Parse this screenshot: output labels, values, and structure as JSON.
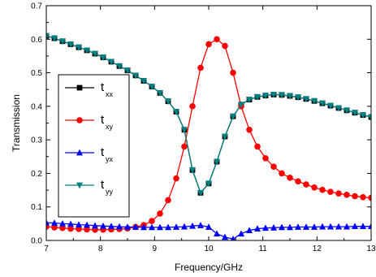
{
  "chart_data": {
    "type": "line",
    "xlabel": "Frequency/GHz",
    "ylabel": "Transmission",
    "xlim": [
      7,
      13
    ],
    "ylim": [
      0.0,
      0.7
    ],
    "xticks": [
      7,
      8,
      9,
      10,
      11,
      12,
      13
    ],
    "yticks": [
      0.0,
      0.1,
      0.2,
      0.3,
      0.4,
      0.5,
      0.6,
      0.7
    ],
    "grid": false,
    "legend_position": "left-middle",
    "x": [
      7.0,
      7.15,
      7.3,
      7.45,
      7.6,
      7.75,
      7.9,
      8.05,
      8.2,
      8.35,
      8.5,
      8.65,
      8.8,
      8.95,
      9.1,
      9.25,
      9.4,
      9.55,
      9.7,
      9.85,
      10.0,
      10.15,
      10.3,
      10.45,
      10.6,
      10.75,
      10.9,
      11.05,
      11.2,
      11.35,
      11.5,
      11.65,
      11.8,
      11.95,
      12.1,
      12.25,
      12.4,
      12.55,
      12.7,
      12.85,
      13.0
    ],
    "series": [
      {
        "name": "t",
        "sub": "xx",
        "color": "#000000",
        "marker": "square",
        "values": [
          0.61,
          0.603,
          0.594,
          0.585,
          0.576,
          0.567,
          0.557,
          0.546,
          0.533,
          0.52,
          0.507,
          0.492,
          0.476,
          0.459,
          0.44,
          0.415,
          0.384,
          0.33,
          0.21,
          0.142,
          0.17,
          0.235,
          0.31,
          0.37,
          0.405,
          0.42,
          0.428,
          0.432,
          0.435,
          0.434,
          0.431,
          0.427,
          0.422,
          0.416,
          0.409,
          0.402,
          0.395,
          0.388,
          0.381,
          0.374,
          0.368
        ]
      },
      {
        "name": "t",
        "sub": "xy",
        "color": "#ff0000",
        "marker": "circle",
        "values": [
          0.041,
          0.039,
          0.037,
          0.035,
          0.034,
          0.033,
          0.032,
          0.032,
          0.033,
          0.034,
          0.036,
          0.04,
          0.046,
          0.058,
          0.08,
          0.12,
          0.185,
          0.28,
          0.4,
          0.515,
          0.585,
          0.6,
          0.58,
          0.5,
          0.4,
          0.33,
          0.28,
          0.245,
          0.22,
          0.2,
          0.187,
          0.176,
          0.167,
          0.158,
          0.151,
          0.145,
          0.14,
          0.136,
          0.132,
          0.129,
          0.127
        ]
      },
      {
        "name": "t",
        "sub": "yx",
        "color": "#0000ff",
        "marker": "triangle-up",
        "values": [
          0.053,
          0.052,
          0.05,
          0.049,
          0.047,
          0.046,
          0.044,
          0.043,
          0.042,
          0.041,
          0.04,
          0.04,
          0.039,
          0.039,
          0.039,
          0.039,
          0.04,
          0.041,
          0.043,
          0.045,
          0.04,
          0.02,
          0.01,
          0.004,
          0.02,
          0.03,
          0.035,
          0.037,
          0.038,
          0.039,
          0.039,
          0.04,
          0.04,
          0.04,
          0.041,
          0.041,
          0.041,
          0.041,
          0.042,
          0.042,
          0.042
        ]
      },
      {
        "name": "t",
        "sub": "yy",
        "color": "#008080",
        "marker": "triangle-down",
        "values": [
          0.61,
          0.603,
          0.594,
          0.585,
          0.576,
          0.567,
          0.557,
          0.546,
          0.533,
          0.52,
          0.507,
          0.492,
          0.476,
          0.459,
          0.44,
          0.415,
          0.384,
          0.33,
          0.21,
          0.142,
          0.17,
          0.235,
          0.31,
          0.37,
          0.405,
          0.42,
          0.428,
          0.432,
          0.435,
          0.434,
          0.431,
          0.427,
          0.422,
          0.416,
          0.409,
          0.402,
          0.395,
          0.388,
          0.381,
          0.374,
          0.368
        ]
      }
    ]
  }
}
